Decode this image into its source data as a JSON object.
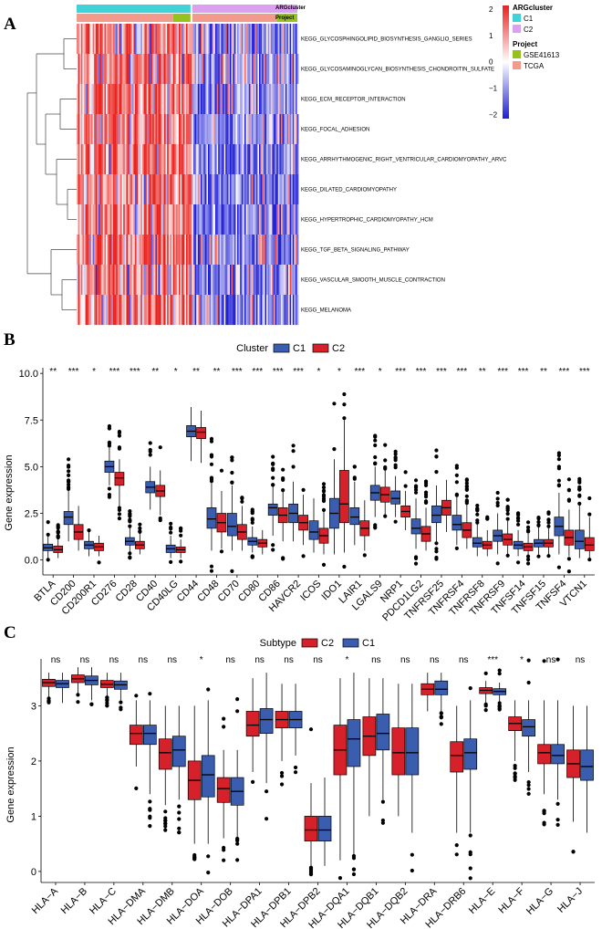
{
  "panels": {
    "A": "A",
    "B": "B",
    "C": "C"
  },
  "colors": {
    "heat_high": "#e8231f",
    "heat_mid": "#ffffff",
    "heat_low": "#1f1fd4",
    "c1": "#3b5db0",
    "c2": "#d6212a",
    "argc1": "#3fd3d8",
    "argc2": "#dca0f0",
    "gse": "#96c11f",
    "tcga": "#f29a8b"
  },
  "heatmap": {
    "annotation_rows": [
      "ARGcluster",
      "Project"
    ],
    "pathways": [
      "KEGG_GLYCOSPHINGOLIPID_BIOSYNTHESIS_GANGLIO_SERIES",
      "KEGG_GLYCOSAMINOGLYCAN_BIOSYNTHESIS_CHONDROITIN_SULFATE",
      "KEGG_ECM_RECEPTOR_INTERACTION",
      "KEGG_FOCAL_ADHESION",
      "KEGG_ARRHYTHMOGENIC_RIGHT_VENTRICULAR_CARDIOMYOPATHY_ARVC",
      "KEGG_DILATED_CARDIOMYOPATHY",
      "KEGG_HYPERTROPHIC_CARDIOMYOPATHY_HCM",
      "KEGG_TGF_BETA_SIGNALING_PATHWAY",
      "KEGG_VASCULAR_SMOOTH_MUSCLE_CONTRACTION",
      "KEGG_MELANOMA"
    ],
    "scale_ticks": [
      "2",
      "1",
      "0",
      "−1",
      "−2"
    ],
    "legend_argcluster": {
      "title": "ARGcluster",
      "items": [
        "C1",
        "C2"
      ]
    },
    "legend_project": {
      "title": "Project",
      "items": [
        "GSE41613",
        "TCGA"
      ]
    }
  },
  "chart_data": [
    {
      "type": "heatmap",
      "title": "",
      "rows": [
        "KEGG_GLYCOSPHINGOLIPID_BIOSYNTHESIS_GANGLIO_SERIES",
        "KEGG_GLYCOSAMINOGLYCAN_BIOSYNTHESIS_CHONDROITIN_SULFATE",
        "KEGG_ECM_RECEPTOR_INTERACTION",
        "KEGG_FOCAL_ADHESION",
        "KEGG_ARRHYTHMOGENIC_RIGHT_VENTRICULAR_CARDIOMYOPATHY_ARVC",
        "KEGG_DILATED_CARDIOMYOPATHY",
        "KEGG_HYPERTROPHIC_CARDIOMYOPATHY_HCM",
        "KEGG_TGF_BETA_SIGNALING_PATHWAY",
        "KEGG_VASCULAR_SMOOTH_MUSCLE_CONTRACTION",
        "KEGG_MELANOMA"
      ],
      "column_groups": [
        {
          "name": "C1",
          "fraction": 0.52
        },
        {
          "name": "C2",
          "fraction": 0.48
        }
      ],
      "color_range": [
        -2,
        2
      ],
      "pattern": "C1 mostly high (red), C2 mostly low (blue)"
    },
    {
      "type": "box",
      "legend_title": "Cluster",
      "series_names": [
        "C1",
        "C2"
      ],
      "ylabel": "Gene expression",
      "ylim": [
        -0.8,
        10.3
      ],
      "yticks": [
        "0.0",
        "2.5",
        "5.0",
        "7.5",
        "10.0"
      ],
      "yticks_values": [
        0,
        2.5,
        5,
        7.5,
        10
      ],
      "categories": [
        "BTLA",
        "CD200",
        "CD200R1",
        "CD276",
        "CD28",
        "CD40",
        "CD40LG",
        "CD44",
        "CD48",
        "CD70",
        "CD80",
        "CD86",
        "HAVCR2",
        "ICOS",
        "IDO1",
        "LAIR1",
        "LGALS9",
        "NRP1",
        "PDCD1LG2",
        "TNFRSF25",
        "TNFRSF4",
        "TNFRSF8",
        "TNFRSF9",
        "TNFSF14",
        "TNFSF15",
        "TNFSF4",
        "VTCN1"
      ],
      "significance": [
        "**",
        "***",
        "*",
        "***",
        "***",
        "**",
        "*",
        "**",
        "**",
        "***",
        "***",
        "***",
        "***",
        "*",
        "*",
        "***",
        "*",
        "***",
        "***",
        "***",
        "***",
        "**",
        "***",
        "***",
        "**",
        "***",
        "***"
      ],
      "stats": {
        "C1": [
          [
            0.1,
            0.5,
            0.65,
            0.85,
            1.3
          ],
          [
            1.0,
            1.9,
            2.3,
            2.6,
            3.7
          ],
          [
            0.2,
            0.6,
            0.8,
            1.0,
            1.5
          ],
          [
            4.0,
            4.7,
            5.0,
            5.3,
            6.0
          ],
          [
            0.4,
            0.8,
            1.0,
            1.2,
            1.8
          ],
          [
            2.7,
            3.6,
            3.9,
            4.2,
            5.0
          ],
          [
            0.1,
            0.4,
            0.6,
            0.8,
            1.3
          ],
          [
            5.3,
            6.6,
            6.9,
            7.2,
            8.2
          ],
          [
            0.5,
            1.7,
            2.2,
            2.8,
            4.2
          ],
          [
            0.5,
            1.3,
            1.8,
            2.5,
            4.0
          ],
          [
            0.4,
            0.8,
            1.0,
            1.2,
            1.8
          ],
          [
            1.3,
            2.4,
            2.8,
            3.0,
            4.0
          ],
          [
            1.0,
            2.0,
            2.5,
            3.0,
            4.2
          ],
          [
            0.4,
            1.1,
            1.5,
            2.1,
            3.3
          ],
          [
            0.3,
            1.7,
            2.5,
            3.3,
            5.4
          ],
          [
            0.8,
            1.9,
            2.3,
            2.8,
            4.2
          ],
          [
            2.3,
            3.2,
            3.6,
            4.0,
            5.0
          ],
          [
            2.3,
            3.0,
            3.3,
            3.7,
            4.5
          ],
          [
            0.6,
            1.4,
            1.7,
            2.2,
            3.3
          ],
          [
            1.0,
            2.0,
            2.4,
            2.9,
            4.0
          ],
          [
            0.8,
            1.6,
            1.9,
            2.4,
            3.4
          ],
          [
            0.2,
            0.7,
            0.9,
            1.2,
            2.0
          ],
          [
            0.3,
            1.0,
            1.3,
            1.6,
            2.5
          ],
          [
            0.2,
            0.6,
            0.8,
            1.0,
            1.6
          ],
          [
            0.3,
            0.7,
            0.9,
            1.1,
            1.8
          ],
          [
            0.3,
            1.3,
            1.8,
            2.3,
            3.6
          ],
          [
            0.1,
            0.6,
            1.0,
            1.6,
            3.0
          ]
        ],
        "C2": [
          [
            0.1,
            0.4,
            0.55,
            0.75,
            1.2
          ],
          [
            0.5,
            1.1,
            1.5,
            1.9,
            2.9
          ],
          [
            0.2,
            0.5,
            0.7,
            0.9,
            1.3
          ],
          [
            2.8,
            4.0,
            4.4,
            4.7,
            5.4
          ],
          [
            0.3,
            0.6,
            0.8,
            1.0,
            1.4
          ],
          [
            2.4,
            3.4,
            3.7,
            4.0,
            4.8
          ],
          [
            0.1,
            0.4,
            0.55,
            0.7,
            1.1
          ],
          [
            5.2,
            6.5,
            6.85,
            7.1,
            8.0
          ],
          [
            0.6,
            1.5,
            2.0,
            2.5,
            3.7
          ],
          [
            0.5,
            1.1,
            1.5,
            1.9,
            2.9
          ],
          [
            0.3,
            0.7,
            0.9,
            1.1,
            1.6
          ],
          [
            1.0,
            2.0,
            2.4,
            2.8,
            3.7
          ],
          [
            0.8,
            1.6,
            2.0,
            2.4,
            3.5
          ],
          [
            0.3,
            0.9,
            1.3,
            1.7,
            2.6
          ],
          [
            0.4,
            2.0,
            3.0,
            4.8,
            7.5
          ],
          [
            0.5,
            1.3,
            1.7,
            2.1,
            3.2
          ],
          [
            2.4,
            3.1,
            3.5,
            3.9,
            4.8
          ],
          [
            1.6,
            2.3,
            2.6,
            2.9,
            3.7
          ],
          [
            0.5,
            1.0,
            1.4,
            1.8,
            2.8
          ],
          [
            1.5,
            2.4,
            2.8,
            3.2,
            4.3
          ],
          [
            0.6,
            1.2,
            1.6,
            2.0,
            3.0
          ],
          [
            0.2,
            0.6,
            0.8,
            1.0,
            1.6
          ],
          [
            0.3,
            0.8,
            1.1,
            1.4,
            2.1
          ],
          [
            0.2,
            0.5,
            0.7,
            0.9,
            1.4
          ],
          [
            0.3,
            0.7,
            0.9,
            1.1,
            1.7
          ],
          [
            0.2,
            0.8,
            1.2,
            1.6,
            2.7
          ],
          [
            0.1,
            0.5,
            0.8,
            1.2,
            2.3
          ]
        ]
      }
    },
    {
      "type": "box",
      "legend_title": "Subtype",
      "series_names": [
        "C2",
        "C1"
      ],
      "ylabel": "Gene expression",
      "ylim": [
        -0.2,
        3.85
      ],
      "yticks": [
        "0",
        "1",
        "2",
        "3"
      ],
      "yticks_values": [
        0,
        1,
        2,
        3
      ],
      "categories": [
        "HLA−A",
        "HLA−B",
        "HLA−C",
        "HLA−DMA",
        "HLA−DMB",
        "HLA−DOA",
        "HLA−DOB",
        "HLA−DPA1",
        "HLA−DPB1",
        "HLA−DPB2",
        "HLA−DQA1",
        "HLA−DQB1",
        "HLA−DQB2",
        "HLA−DRA",
        "HLA−DRB6",
        "HLA−E",
        "HLA−F",
        "HLA−G",
        "HLA−J"
      ],
      "significance": [
        "ns",
        "ns",
        "ns",
        "ns",
        "ns",
        "*",
        "ns",
        "ns",
        "ns",
        "ns",
        "*",
        "ns",
        "ns",
        "ns",
        "ns",
        "***",
        "*",
        "ns",
        "ns"
      ],
      "stats": {
        "C2": [
          [
            3.15,
            3.35,
            3.42,
            3.48,
            3.6
          ],
          [
            3.2,
            3.42,
            3.49,
            3.56,
            3.7
          ],
          [
            3.15,
            3.33,
            3.39,
            3.46,
            3.6
          ],
          [
            1.9,
            2.3,
            2.5,
            2.65,
            3.1
          ],
          [
            1.2,
            1.85,
            2.15,
            2.4,
            3.0
          ],
          [
            0.5,
            1.3,
            1.65,
            2.0,
            3.0
          ],
          [
            0.6,
            1.25,
            1.5,
            1.7,
            2.2
          ],
          [
            1.8,
            2.45,
            2.65,
            2.9,
            3.5
          ],
          [
            2.0,
            2.6,
            2.75,
            2.9,
            3.4
          ],
          [
            0.1,
            0.55,
            0.75,
            1.0,
            1.6
          ],
          [
            0.2,
            1.75,
            2.2,
            2.65,
            3.5
          ],
          [
            1.0,
            2.1,
            2.45,
            2.8,
            3.5
          ],
          [
            1.0,
            1.75,
            2.15,
            2.6,
            3.4
          ],
          [
            2.9,
            3.2,
            3.3,
            3.4,
            3.6
          ],
          [
            0.7,
            1.8,
            2.1,
            2.35,
            3.0
          ],
          [
            3.05,
            3.22,
            3.28,
            3.33,
            3.45
          ],
          [
            2.0,
            2.55,
            2.68,
            2.8,
            3.1
          ],
          [
            1.4,
            1.95,
            2.15,
            2.3,
            3.1
          ],
          [
            0.9,
            1.7,
            1.95,
            2.2,
            3.0
          ]
        ],
        "C1": [
          [
            3.05,
            3.33,
            3.4,
            3.46,
            3.6
          ],
          [
            3.1,
            3.38,
            3.46,
            3.54,
            3.7
          ],
          [
            3.1,
            3.3,
            3.38,
            3.45,
            3.6
          ],
          [
            1.4,
            2.3,
            2.5,
            2.65,
            3.1
          ],
          [
            1.3,
            1.9,
            2.2,
            2.45,
            3.0
          ],
          [
            0.5,
            1.35,
            1.75,
            2.1,
            3.1
          ],
          [
            0.6,
            1.2,
            1.45,
            1.7,
            2.2
          ],
          [
            1.6,
            2.5,
            2.75,
            2.95,
            3.6
          ],
          [
            2.1,
            2.6,
            2.75,
            2.9,
            3.4
          ],
          [
            0.1,
            0.55,
            0.75,
            1.0,
            1.7
          ],
          [
            0.3,
            1.9,
            2.4,
            2.75,
            3.6
          ],
          [
            1.3,
            2.2,
            2.5,
            2.85,
            3.5
          ],
          [
            0.7,
            1.75,
            2.15,
            2.6,
            3.4
          ],
          [
            2.9,
            3.2,
            3.3,
            3.45,
            3.6
          ],
          [
            0.7,
            1.85,
            2.15,
            2.4,
            3.1
          ],
          [
            3.05,
            3.2,
            3.26,
            3.31,
            3.42
          ],
          [
            1.8,
            2.45,
            2.62,
            2.75,
            3.1
          ],
          [
            1.3,
            1.95,
            2.1,
            2.3,
            3.1
          ],
          [
            0.7,
            1.65,
            1.9,
            2.2,
            3.0
          ]
        ]
      }
    }
  ]
}
